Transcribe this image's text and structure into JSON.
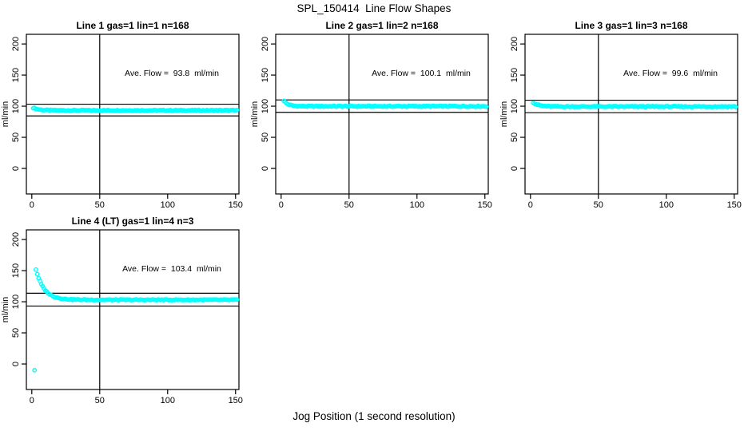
{
  "figure": {
    "title": "SPL_150414  Line Flow Shapes",
    "xlabel": "Jog Position (1 second resolution)",
    "background_color": "#ffffff",
    "axis_color": "#000000",
    "point_color": "#00ffff"
  },
  "chart_data": [
    {
      "type": "scatter",
      "title": "Line 1 gas=1 lin=1 n=168",
      "annotation": "Ave. Flow =  93.8  ml/min",
      "ave_flow_ml_min": 93.8,
      "ylabel": "ml/min",
      "x_ticks": [
        0,
        50,
        100,
        150
      ],
      "y_ticks": [
        0,
        50,
        100,
        150,
        200
      ],
      "xlim": [
        -4,
        152.5
      ],
      "ylim": [
        -41,
        215.5
      ],
      "vline_x": 50,
      "hlines": [
        103.2,
        84.4
      ],
      "marker": {
        "shape": "open-circle",
        "color": "#00ffff",
        "radius": 2.2
      },
      "series": {
        "name": "flow",
        "x_step": 1,
        "x_start": 1,
        "x_end": 151,
        "start_value": 97.5,
        "settle_value": 93.3,
        "decay_tau": 4,
        "jitter": 0.8,
        "outliers": []
      }
    },
    {
      "type": "scatter",
      "title": "Line 2 gas=1 lin=2 n=168",
      "annotation": "Ave. Flow =  100.1  ml/min",
      "ave_flow_ml_min": 100.1,
      "ylabel": "ml/min",
      "x_ticks": [
        0,
        50,
        100,
        150
      ],
      "y_ticks": [
        0,
        50,
        100,
        150,
        200
      ],
      "xlim": [
        -4,
        152.5
      ],
      "ylim": [
        -41,
        215.5
      ],
      "vline_x": 50,
      "hlines": [
        110.1,
        90.1
      ],
      "marker": {
        "shape": "open-circle",
        "color": "#00ffff",
        "radius": 2.2
      },
      "series": {
        "name": "flow",
        "x_step": 1,
        "x_start": 2,
        "x_end": 151,
        "start_value": 109,
        "settle_value": 99.9,
        "decay_tau": 3,
        "jitter": 0.8,
        "outliers": []
      }
    },
    {
      "type": "scatter",
      "title": "Line 3 gas=1 lin=3 n=168",
      "annotation": "Ave. Flow =  99.6  ml/min",
      "ave_flow_ml_min": 99.6,
      "ylabel": "ml/min",
      "x_ticks": [
        0,
        50,
        100,
        150
      ],
      "y_ticks": [
        0,
        50,
        100,
        150,
        200
      ],
      "xlim": [
        -4,
        152.5
      ],
      "ylim": [
        -41,
        215.5
      ],
      "vline_x": 50,
      "hlines": [
        109.6,
        89.6
      ],
      "marker": {
        "shape": "open-circle",
        "color": "#00ffff",
        "radius": 2.2
      },
      "series": {
        "name": "flow",
        "x_step": 1,
        "x_start": 2,
        "x_end": 151,
        "start_value": 106,
        "settle_value": 99.4,
        "decay_tau": 4,
        "jitter": 0.8,
        "outliers": []
      }
    },
    {
      "type": "scatter",
      "title": "Line 4 (LT) gas=1 lin=4 n=3",
      "annotation": "Ave. Flow =  103.4  ml/min",
      "ave_flow_ml_min": 103.4,
      "ylabel": "ml/min",
      "x_ticks": [
        0,
        50,
        100,
        150
      ],
      "y_ticks": [
        0,
        50,
        100,
        150,
        200
      ],
      "xlim": [
        -4,
        152.5
      ],
      "ylim": [
        -41,
        215.5
      ],
      "vline_x": 50,
      "hlines": [
        113.7,
        93.1
      ],
      "marker": {
        "shape": "open-circle",
        "color": "#00ffff",
        "radius": 2.2
      },
      "series": {
        "name": "flow",
        "x_step": 1,
        "x_start": 3,
        "x_end": 151,
        "start_value": 152,
        "settle_value": 103.1,
        "decay_tau": 6,
        "jitter": 0.7,
        "outliers": [
          [
            2,
            -10
          ]
        ]
      }
    }
  ]
}
